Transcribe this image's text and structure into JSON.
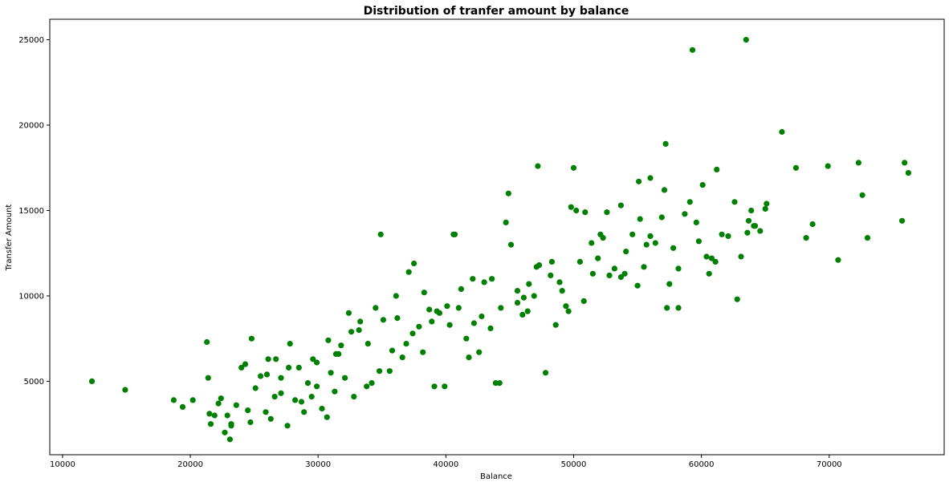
{
  "chart_data": {
    "type": "scatter",
    "title": "Distribution of tranfer amount by balance",
    "xlabel": "Balance",
    "ylabel": "Transfer Amount",
    "xlim": [
      9000,
      79000
    ],
    "ylim": [
      700,
      26200
    ],
    "xticks": [
      10000,
      20000,
      30000,
      40000,
      50000,
      60000,
      70000
    ],
    "yticks": [
      5000,
      10000,
      15000,
      20000,
      25000
    ],
    "xtick_labels": [
      "10000",
      "20000",
      "30000",
      "40000",
      "50000",
      "60000",
      "70000"
    ],
    "ytick_labels": [
      "5000",
      "10000",
      "15000",
      "20000",
      "25000"
    ],
    "grid": false,
    "legend": "none",
    "marker_color": "#008000",
    "series": [
      {
        "x": [
          12300,
          14900,
          18700,
          19400,
          20200,
          21300,
          21400,
          21500,
          21600,
          22200,
          22400,
          22700,
          23100,
          23200,
          23600,
          24000,
          24300,
          24700,
          25100,
          25500,
          25900,
          26100,
          26300,
          26600,
          27100,
          27600,
          27800,
          28200,
          28500,
          28900,
          29200,
          29500,
          29900,
          30300,
          30700,
          31000,
          31300,
          31600,
          32100,
          32400,
          32800,
          33300,
          33800,
          34200,
          34800,
          35100,
          35600,
          36200,
          36600,
          37100,
          37500,
          37900,
          38300,
          38700,
          39100,
          39500,
          39900,
          40300,
          40700,
          41200,
          41600,
          42100,
          42600,
          43000,
          43500,
          43900,
          44300,
          44700,
          45100,
          45600,
          46000,
          46500,
          46900,
          47300,
          47800,
          48200,
          48600,
          49100,
          49600,
          50000,
          50500,
          50900,
          51400,
          51900,
          52300,
          52800,
          53200,
          53700,
          54100,
          54600,
          55100,
          55500,
          56000,
          56400,
          56900,
          57300,
          57800,
          58200,
          58700,
          59100,
          59600,
          60100,
          60600,
          61100,
          61600,
          62100,
          62600,
          63100,
          63600,
          64100,
          64600,
          65100,
          66300,
          67400,
          68200,
          68700,
          69900,
          70700,
          72300,
          72600,
          73000,
          75700,
          75900,
          76200,
          47200,
          50200,
          40600,
          34900,
          59300,
          63500,
          57200,
          44900,
          33200,
          29900,
          27100,
          24800,
          22900,
          21900,
          26700,
          31800,
          36900,
          41800,
          46400,
          50800,
          55200,
          59800,
          64200,
          38200,
          42800,
          52100,
          62800,
          30800,
          35800,
          48900,
          57100,
          60400,
          45600,
          53700,
          37400,
          32600,
          27700,
          23200,
          40100,
          44200,
          49400,
          54000,
          58200,
          63700,
          26000,
          33900,
          39300,
          47100,
          51500,
          61200,
          65000,
          28700,
          36100,
          43600,
          56000,
          24500,
          31400,
          42200,
          48300,
          55700,
          60800,
          29600,
          38900,
          46100,
          52600,
          57500,
          63900,
          34500,
          41000,
          49800,
          55000
        ],
        "y": [
          5000,
          4500,
          3900,
          3500,
          3900,
          7300,
          5200,
          3100,
          2500,
          3700,
          4000,
          2000,
          1600,
          2400,
          3600,
          5800,
          6000,
          2600,
          4600,
          5300,
          3200,
          6300,
          2800,
          4100,
          4300,
          2400,
          7200,
          3900,
          5800,
          3200,
          4900,
          4100,
          4700,
          3400,
          2900,
          5500,
          4400,
          6600,
          5200,
          9000,
          4100,
          8500,
          4700,
          4900,
          5600,
          8600,
          5600,
          8700,
          6400,
          11400,
          11900,
          8200,
          10200,
          9200,
          4700,
          9000,
          4700,
          8300,
          13600,
          10400,
          7500,
          11000,
          6700,
          10800,
          8100,
          4900,
          9300,
          14300,
          13000,
          10300,
          8900,
          10700,
          10000,
          11800,
          5500,
          11200,
          8300,
          10300,
          9100,
          17500,
          12000,
          14900,
          13100,
          12200,
          13400,
          11200,
          11600,
          15300,
          12600,
          13600,
          16700,
          11700,
          16900,
          13100,
          14600,
          9300,
          12800,
          9300,
          14800,
          15500,
          14300,
          16500,
          11300,
          12000,
          13600,
          13500,
          15500,
          12300,
          13700,
          14100,
          13800,
          15400,
          19600,
          17500,
          13400,
          14200,
          17600,
          12100,
          17800,
          15900,
          13400,
          14400,
          17800,
          17200,
          17600,
          15000,
          13600,
          13600,
          24400,
          25000,
          18900,
          16000,
          8000,
          6100,
          5200,
          7500,
          3000,
          3000,
          6300,
          7100,
          7200,
          6400,
          9100,
          9700,
          14500,
          13200,
          14100,
          6700,
          8800,
          13600,
          9800,
          7400,
          6800,
          10800,
          16200,
          12300,
          9600,
          11100,
          7800,
          7900,
          5800,
          2500,
          9400,
          4900,
          9400,
          11300,
          11600,
          14400,
          5400,
          7200,
          9100,
          11700,
          11300,
          17400,
          15100,
          3800,
          10000,
          11000,
          13500,
          3300,
          6600,
          8400,
          12000,
          13000,
          12200,
          6300,
          8500,
          9900,
          14900,
          10700,
          15000,
          9300,
          9300,
          15200,
          10600
        ]
      }
    ]
  }
}
